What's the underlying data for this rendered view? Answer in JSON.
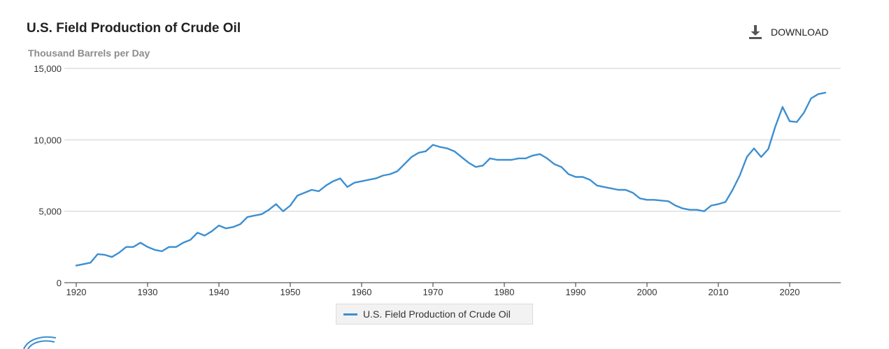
{
  "header": {
    "title": "U.S. Field Production of Crude Oil",
    "subtitle": "Thousand Barrels per Day",
    "download_label": "DOWNLOAD",
    "download_icon": "download-icon"
  },
  "legend": {
    "label": "U.S. Field Production of Crude Oil"
  },
  "colors": {
    "series": "#3d8fd1",
    "grid": "#cfcfcf",
    "axis": "#333333",
    "text": "#333333"
  },
  "chart_data": {
    "type": "line",
    "title": "U.S. Field Production of Crude Oil",
    "subtitle": "Thousand Barrels per Day",
    "xlim": [
      1920,
      2025
    ],
    "ylim": [
      0,
      15000
    ],
    "x_ticks": [
      1920,
      1930,
      1940,
      1950,
      1960,
      1970,
      1980,
      1990,
      2000,
      2010,
      2020
    ],
    "y_ticks": [
      0,
      5000,
      10000,
      15000
    ],
    "y_tick_labels": [
      "0",
      "5,000",
      "10,000",
      "15,000"
    ],
    "grid": "horizontal",
    "legend_position": "bottom-center",
    "series": [
      {
        "name": "U.S. Field Production of Crude Oil",
        "x": [
          1920,
          1921,
          1922,
          1923,
          1924,
          1925,
          1926,
          1927,
          1928,
          1929,
          1930,
          1931,
          1932,
          1933,
          1934,
          1935,
          1936,
          1937,
          1938,
          1939,
          1940,
          1941,
          1942,
          1943,
          1944,
          1945,
          1946,
          1947,
          1948,
          1949,
          1950,
          1951,
          1952,
          1953,
          1954,
          1955,
          1956,
          1957,
          1958,
          1959,
          1960,
          1961,
          1962,
          1963,
          1964,
          1965,
          1966,
          1967,
          1968,
          1969,
          1970,
          1971,
          1972,
          1973,
          1974,
          1975,
          1976,
          1977,
          1978,
          1979,
          1980,
          1981,
          1982,
          1983,
          1984,
          1985,
          1986,
          1987,
          1988,
          1989,
          1990,
          1991,
          1992,
          1993,
          1994,
          1995,
          1996,
          1997,
          1998,
          1999,
          2000,
          2001,
          2002,
          2003,
          2004,
          2005,
          2006,
          2007,
          2008,
          2009,
          2010,
          2011,
          2012,
          2013,
          2014,
          2015,
          2016,
          2017,
          2018,
          2019,
          2020,
          2021,
          2022,
          2023,
          2024,
          2025
        ],
        "values": [
          1200,
          1300,
          1400,
          2000,
          1950,
          1800,
          2100,
          2500,
          2500,
          2800,
          2500,
          2300,
          2200,
          2500,
          2500,
          2800,
          3000,
          3500,
          3300,
          3600,
          4000,
          3800,
          3900,
          4100,
          4600,
          4700,
          4800,
          5100,
          5500,
          5000,
          5400,
          6100,
          6300,
          6500,
          6400,
          6800,
          7100,
          7300,
          6700,
          7000,
          7100,
          7200,
          7300,
          7500,
          7600,
          7800,
          8300,
          8800,
          9100,
          9200,
          9650,
          9500,
          9400,
          9200,
          8800,
          8400,
          8100,
          8200,
          8700,
          8600,
          8600,
          8600,
          8700,
          8700,
          8900,
          9000,
          8700,
          8300,
          8100,
          7600,
          7400,
          7400,
          7200,
          6800,
          6700,
          6600,
          6500,
          6500,
          6300,
          5900,
          5800,
          5800,
          5750,
          5700,
          5400,
          5200,
          5100,
          5100,
          5000,
          5400,
          5500,
          5650,
          6500,
          7500,
          8800,
          9400,
          8800,
          9350,
          10950,
          12300,
          11300,
          11250,
          11900,
          12900,
          13200,
          13300
        ]
      }
    ]
  }
}
